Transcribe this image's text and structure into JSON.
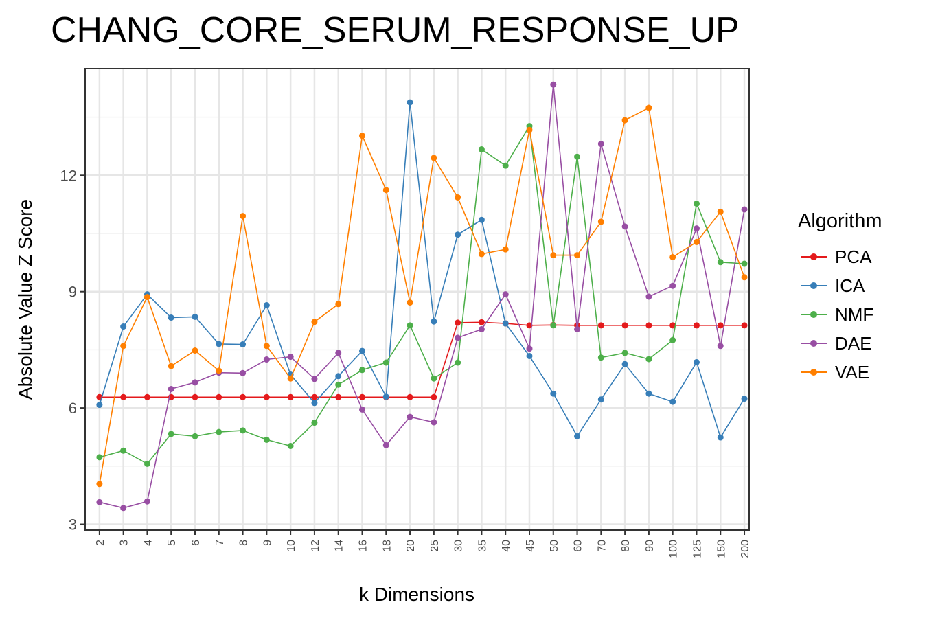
{
  "chart_data": {
    "type": "line",
    "title": "CHANG_CORE_SERUM_RESPONSE_UP",
    "xlabel": "k Dimensions",
    "ylabel": "Absolute Value Z Score",
    "categories": [
      "2",
      "3",
      "4",
      "5",
      "6",
      "7",
      "8",
      "9",
      "10",
      "12",
      "14",
      "16",
      "18",
      "20",
      "25",
      "30",
      "35",
      "40",
      "45",
      "50",
      "60",
      "70",
      "80",
      "90",
      "100",
      "125",
      "150",
      "200"
    ],
    "ylim": [
      2.85,
      14.75
    ],
    "yticks": [
      3,
      6,
      9,
      12
    ],
    "grid": true,
    "legend_title": "Algorithm",
    "legend_position": "right",
    "series": [
      {
        "name": "PCA",
        "color": "#E41A1C",
        "values": [
          6.28,
          6.28,
          6.28,
          6.28,
          6.28,
          6.28,
          6.28,
          6.28,
          6.28,
          6.28,
          6.28,
          6.28,
          6.28,
          6.28,
          6.28,
          8.2,
          8.21,
          8.18,
          8.13,
          8.14,
          8.13,
          8.13,
          8.13,
          8.13,
          8.13,
          8.13,
          8.13,
          8.13
        ]
      },
      {
        "name": "ICA",
        "color": "#377EB8",
        "values": [
          6.08,
          8.1,
          8.93,
          8.33,
          8.35,
          7.65,
          7.64,
          8.65,
          6.86,
          6.13,
          6.82,
          7.47,
          6.29,
          13.88,
          8.23,
          10.47,
          10.85,
          8.18,
          7.34,
          6.37,
          5.27,
          6.22,
          7.13,
          6.37,
          6.16,
          7.18,
          5.24,
          6.24
        ]
      },
      {
        "name": "NMF",
        "color": "#4DAF4A",
        "values": [
          4.73,
          4.9,
          4.56,
          5.33,
          5.27,
          5.38,
          5.42,
          5.18,
          5.02,
          5.62,
          6.6,
          6.98,
          7.17,
          8.13,
          6.76,
          7.17,
          12.67,
          12.25,
          13.27,
          8.13,
          12.48,
          7.3,
          7.42,
          7.26,
          7.75,
          11.27,
          9.76,
          9.72
        ]
      },
      {
        "name": "DAE",
        "color": "#984EA3",
        "values": [
          3.57,
          3.42,
          3.59,
          6.49,
          6.66,
          6.91,
          6.9,
          7.25,
          7.32,
          6.75,
          7.42,
          5.96,
          5.04,
          5.77,
          5.63,
          7.81,
          8.03,
          8.93,
          7.53,
          14.34,
          8.03,
          12.81,
          10.68,
          8.87,
          9.15,
          10.63,
          7.6,
          11.12
        ]
      },
      {
        "name": "VAE",
        "color": "#FF7F00",
        "values": [
          4.04,
          7.6,
          8.86,
          7.08,
          7.48,
          6.96,
          10.95,
          7.6,
          6.76,
          8.22,
          8.68,
          13.02,
          11.62,
          8.72,
          12.45,
          11.43,
          9.97,
          10.09,
          13.17,
          9.94,
          9.94,
          10.8,
          13.42,
          13.74,
          9.89,
          10.28,
          11.06,
          9.37
        ]
      }
    ]
  }
}
